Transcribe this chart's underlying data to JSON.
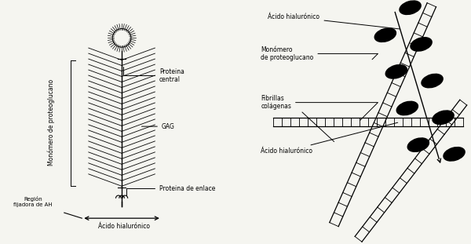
{
  "bg_color": "#f5f5f0",
  "line_color": "#000000",
  "left_labels": {
    "proteina_central": "Proteina\ncentral",
    "gag": "GAG",
    "proteina_enlace": "Proteina de enlace",
    "monomero": "Monómero de proteoglucano",
    "region_fijadora": "Región\nfijadora de AH",
    "acido_hialuronico_bottom": "Ácido hialurónico"
  },
  "right_labels": {
    "acido_hialuronico_top": "Ácido hialurónico",
    "monomero_proteoglucano": "Monómero\nde proteoglucano",
    "fibrillas_colagenas": "Fibrillas\ncolágenas",
    "acido_hialuronico_bottom": "Ácido hialurónico"
  }
}
